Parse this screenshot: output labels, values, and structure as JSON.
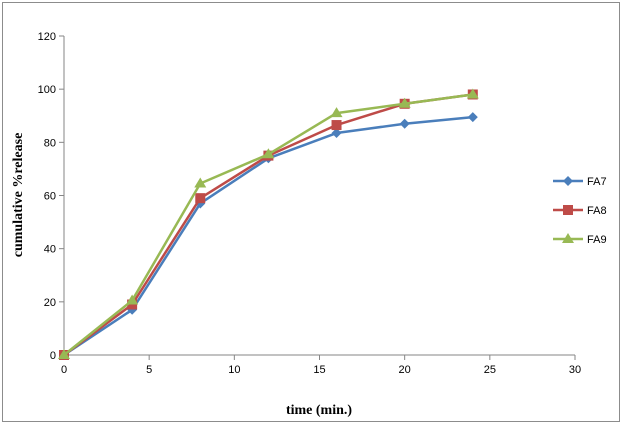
{
  "chart_data": {
    "type": "line",
    "title": "",
    "xlabel": "time (min.)",
    "ylabel": "cumulative %release",
    "xlim": [
      0,
      30
    ],
    "ylim": [
      0,
      120
    ],
    "xticks": [
      0,
      5,
      10,
      15,
      20,
      25,
      30
    ],
    "yticks": [
      0,
      20,
      40,
      60,
      80,
      100,
      120
    ],
    "grid": false,
    "legend_position": "right",
    "series": [
      {
        "name": "FA7",
        "color": "#4a7ebb",
        "marker": "diamond",
        "x": [
          0,
          4,
          8,
          12,
          16,
          20,
          24
        ],
        "y": [
          0,
          17,
          57,
          74,
          83.5,
          87,
          89.5
        ]
      },
      {
        "name": "FA8",
        "color": "#be4b48",
        "marker": "square",
        "x": [
          0,
          4,
          8,
          12,
          16,
          20,
          24
        ],
        "y": [
          0,
          19,
          59,
          75,
          86.5,
          94.5,
          98
        ]
      },
      {
        "name": "FA9",
        "color": "#98b954",
        "marker": "triangle",
        "x": [
          0,
          4,
          8,
          12,
          16,
          20,
          24
        ],
        "y": [
          0,
          20.5,
          64.5,
          75.5,
          91,
          94.5,
          98
        ]
      }
    ]
  }
}
